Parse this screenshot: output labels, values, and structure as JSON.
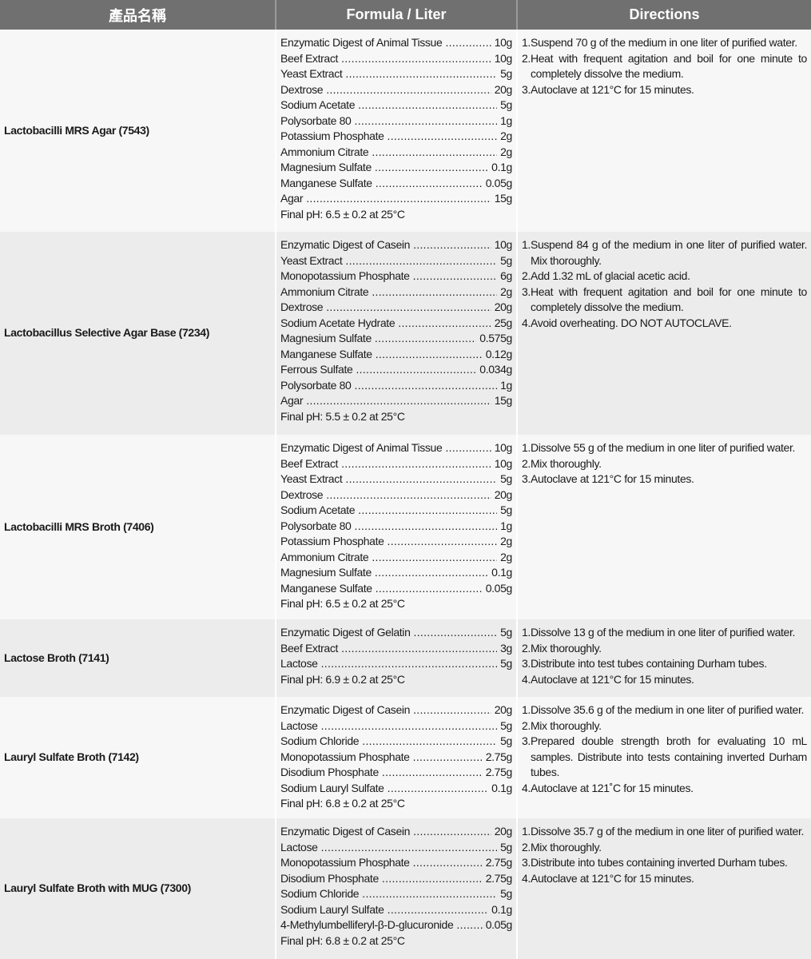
{
  "headers": [
    "產品名稱",
    "Formula / Liter",
    "Directions"
  ],
  "rows": [
    {
      "name": "Lactobacilli MRS Agar (7543)",
      "ingredients": [
        [
          "Enzymatic Digest of Animal Tissue",
          "10g"
        ],
        [
          "Beef Extract",
          "10g"
        ],
        [
          "Yeast Extract",
          "5g"
        ],
        [
          "Dextrose",
          "20g"
        ],
        [
          "Sodium Acetate",
          "5g"
        ],
        [
          "Polysorbate 80",
          "1g"
        ],
        [
          "Potassium Phosphate",
          "2g"
        ],
        [
          "Ammonium Citrate",
          "2g"
        ],
        [
          "Magnesium Sulfate",
          "0.1g"
        ],
        [
          "Manganese Sulfate",
          "0.05g"
        ],
        [
          "Agar",
          "15g"
        ]
      ],
      "ph": "Final pH:  6.5 ± 0.2 at 25°C",
      "directions": [
        "1.Suspend 70 g of the medium in one liter of purified water.",
        "2.Heat with frequent agitation and boil for one minute to completely dissolve the medium.",
        "3.Autoclave at 121°C for 15 minutes."
      ]
    },
    {
      "name": "Lactobacillus Selective Agar Base (7234)",
      "ingredients": [
        [
          "Enzymatic Digest of Casein",
          "10g"
        ],
        [
          "Yeast Extract",
          "5g"
        ],
        [
          "Monopotassium Phosphate",
          "6g"
        ],
        [
          "Ammonium Citrate",
          "2g"
        ],
        [
          "Dextrose",
          "20g"
        ],
        [
          "Sodium Acetate Hydrate",
          "25g"
        ],
        [
          "Magnesium Sulfate",
          "0.575g"
        ],
        [
          "Manganese Sulfate",
          "0.12g"
        ],
        [
          "Ferrous Sulfate",
          "0.034g"
        ],
        [
          "Polysorbate 80",
          "1g"
        ],
        [
          "Agar",
          "15g"
        ]
      ],
      "ph": "Final pH:  5.5 ± 0.2 at 25°C",
      "directions": [
        "1.Suspend 84 g of the medium in one liter of purified water. Mix thoroughly.",
        "2.Add 1.32 mL of glacial acetic acid.",
        "3.Heat with frequent agitation and boil for one minute to completely dissolve the medium.",
        "4.Avoid overheating. DO NOT AUTOCLAVE."
      ]
    },
    {
      "name": "Lactobacilli MRS Broth (7406)",
      "ingredients": [
        [
          "Enzymatic Digest of Animal Tissue",
          "10g"
        ],
        [
          "Beef Extract",
          "10g"
        ],
        [
          "Yeast Extract",
          "5g"
        ],
        [
          "Dextrose",
          "20g"
        ],
        [
          "Sodium Acetate",
          "5g"
        ],
        [
          "Polysorbate 80",
          "1g"
        ],
        [
          "Potassium Phosphate",
          "2g"
        ],
        [
          "Ammonium Citrate",
          "2g"
        ],
        [
          "Magnesium Sulfate",
          "0.1g"
        ],
        [
          "Manganese Sulfate",
          "0.05g"
        ]
      ],
      "ph": "Final pH:  6.5 ± 0.2 at 25°C",
      "directions": [
        "1.Dissolve 55 g of the medium in one liter of purified water.",
        "2.Mix thoroughly.",
        "3.Autoclave at 121°C for 15 minutes."
      ]
    },
    {
      "name": "Lactose Broth (7141)",
      "ingredients": [
        [
          "Enzymatic Digest of Gelatin",
          "5g"
        ],
        [
          "Beef Extract",
          "3g"
        ],
        [
          "Lactose",
          "5g"
        ]
      ],
      "ph": "Final pH:  6.9 ± 0.2 at 25°C",
      "directions": [
        "1.Dissolve 13 g of the medium in one liter of purified water.",
        "2.Mix thoroughly.",
        "3.Distribute into test tubes containing Durham tubes.",
        "4.Autoclave at 121°C for 15 minutes."
      ]
    },
    {
      "name": "Lauryl Sulfate Broth (7142)",
      "ingredients": [
        [
          "Enzymatic Digest of Casein",
          "20g"
        ],
        [
          "Lactose",
          "5g"
        ],
        [
          "Sodium Chloride",
          "5g"
        ],
        [
          "Monopotassium Phosphate",
          "2.75g"
        ],
        [
          "Disodium Phosphate",
          "2.75g"
        ],
        [
          "Sodium Lauryl Sulfate",
          "0.1g"
        ]
      ],
      "ph": "Final pH:  6.8 ± 0.2 at 25°C",
      "directions": [
        "1.Dissolve 35.6 g of the medium in one liter of purified water.",
        "2.Mix thoroughly.",
        "3.Prepared double strength broth for evaluating 10 mL samples. Distribute into tests containing inverted Durham tubes.",
        "4.Autoclave at 121˚C for 15 minutes."
      ]
    },
    {
      "name": "Lauryl Sulfate Broth with MUG (7300)",
      "ingredients": [
        [
          "Enzymatic Digest of Casein",
          "20g"
        ],
        [
          "Lactose",
          "5g"
        ],
        [
          "Monopotassium Phosphate",
          "2.75g"
        ],
        [
          "Disodium Phosphate",
          "2.75g"
        ],
        [
          "Sodium Chloride",
          "5g"
        ],
        [
          "Sodium Lauryl Sulfate",
          "0.1g"
        ],
        [
          "4-Methylumbelliferyl-β-D-glucuronide",
          "0.05g"
        ]
      ],
      "ph": "Final pH:  6.8 ± 0.2 at 25°C",
      "directions": [
        "1.Dissolve 35.7 g of the medium in one liter of purified water.",
        "2.Mix thoroughly.",
        "3.Distribute into tubes containing inverted Durham tubes.",
        "4.Autoclave at 121°C for 15 minutes."
      ]
    }
  ]
}
